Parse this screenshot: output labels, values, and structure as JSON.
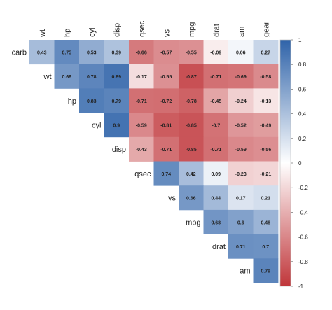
{
  "chart_data": {
    "type": "heatmap",
    "subtype": "upper-triangular correlation matrix",
    "variables": [
      "carb",
      "wt",
      "hp",
      "cyl",
      "disp",
      "qsec",
      "vs",
      "mpg",
      "drat",
      "am",
      "gear"
    ],
    "column_labels": [
      "wt",
      "hp",
      "cyl",
      "disp",
      "qsec",
      "vs",
      "mpg",
      "drat",
      "am",
      "gear"
    ],
    "row_labels": [
      "carb",
      "wt",
      "hp",
      "cyl",
      "disp",
      "qsec",
      "vs",
      "mpg",
      "drat",
      "am"
    ],
    "rows": [
      {
        "row": "carb",
        "values": [
          0.43,
          0.75,
          0.53,
          0.39,
          -0.66,
          -0.57,
          -0.55,
          -0.09,
          0.06,
          0.27
        ]
      },
      {
        "row": "wt",
        "values": [
          0.66,
          0.78,
          0.89,
          -0.17,
          -0.55,
          -0.87,
          -0.71,
          -0.69,
          -0.58
        ]
      },
      {
        "row": "hp",
        "values": [
          0.83,
          0.79,
          -0.71,
          -0.72,
          -0.78,
          -0.45,
          -0.24,
          -0.13
        ]
      },
      {
        "row": "cyl",
        "values": [
          0.9,
          -0.59,
          -0.81,
          -0.85,
          -0.7,
          -0.52,
          -0.49
        ]
      },
      {
        "row": "disp",
        "values": [
          -0.43,
          -0.71,
          -0.85,
          -0.71,
          -0.59,
          -0.56
        ]
      },
      {
        "row": "qsec",
        "values": [
          0.74,
          0.42,
          0.09,
          -0.23,
          -0.21
        ]
      },
      {
        "row": "vs",
        "values": [
          0.66,
          0.44,
          0.17,
          0.21
        ]
      },
      {
        "row": "mpg",
        "values": [
          0.68,
          0.6,
          0.48
        ]
      },
      {
        "row": "drat",
        "values": [
          0.71,
          0.7
        ]
      },
      {
        "row": "am",
        "values": [
          0.79
        ]
      }
    ],
    "colorbar": {
      "ticks": [
        "1",
        "0.8",
        "0.6",
        "0.4",
        "0.2",
        "0",
        "-0.2",
        "-0.4",
        "-0.6",
        "-0.8",
        "-1"
      ],
      "range": [
        -1,
        1
      ],
      "colors": {
        "negative": "#C0363A",
        "zero": "#FFFFFF",
        "positive": "#2F63A9"
      }
    }
  }
}
